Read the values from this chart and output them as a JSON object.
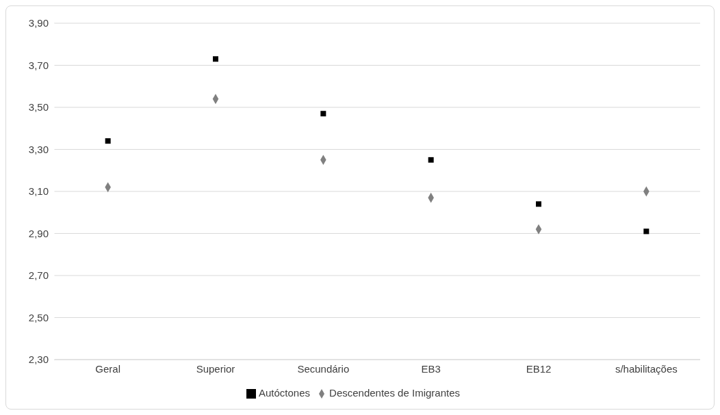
{
  "chart_data": {
    "type": "scatter",
    "categories": [
      "Geral",
      "Superior",
      "Secundário",
      "EB3",
      "EB12",
      "s/habilitações"
    ],
    "series": [
      {
        "name": "Autóctones",
        "color": "#000000",
        "marker": "square",
        "values": [
          3.34,
          3.73,
          3.47,
          3.25,
          3.04,
          2.91
        ]
      },
      {
        "name": "Descendentes de Imigrantes",
        "color": "#808080",
        "marker": "diamond",
        "values": [
          3.12,
          3.54,
          3.25,
          3.07,
          2.92,
          3.1
        ]
      }
    ],
    "ylim": [
      2.3,
      3.9
    ],
    "yticks": [
      {
        "value": 2.3,
        "label": "2,30"
      },
      {
        "value": 2.5,
        "label": "2,50"
      },
      {
        "value": 2.7,
        "label": "2,70"
      },
      {
        "value": 2.9,
        "label": "2,90"
      },
      {
        "value": 3.1,
        "label": "3,10"
      },
      {
        "value": 3.3,
        "label": "3,30"
      },
      {
        "value": 3.5,
        "label": "3,50"
      },
      {
        "value": 3.7,
        "label": "3,70"
      },
      {
        "value": 3.9,
        "label": "3,90"
      }
    ],
    "grid": "y",
    "legend": "bottom"
  }
}
